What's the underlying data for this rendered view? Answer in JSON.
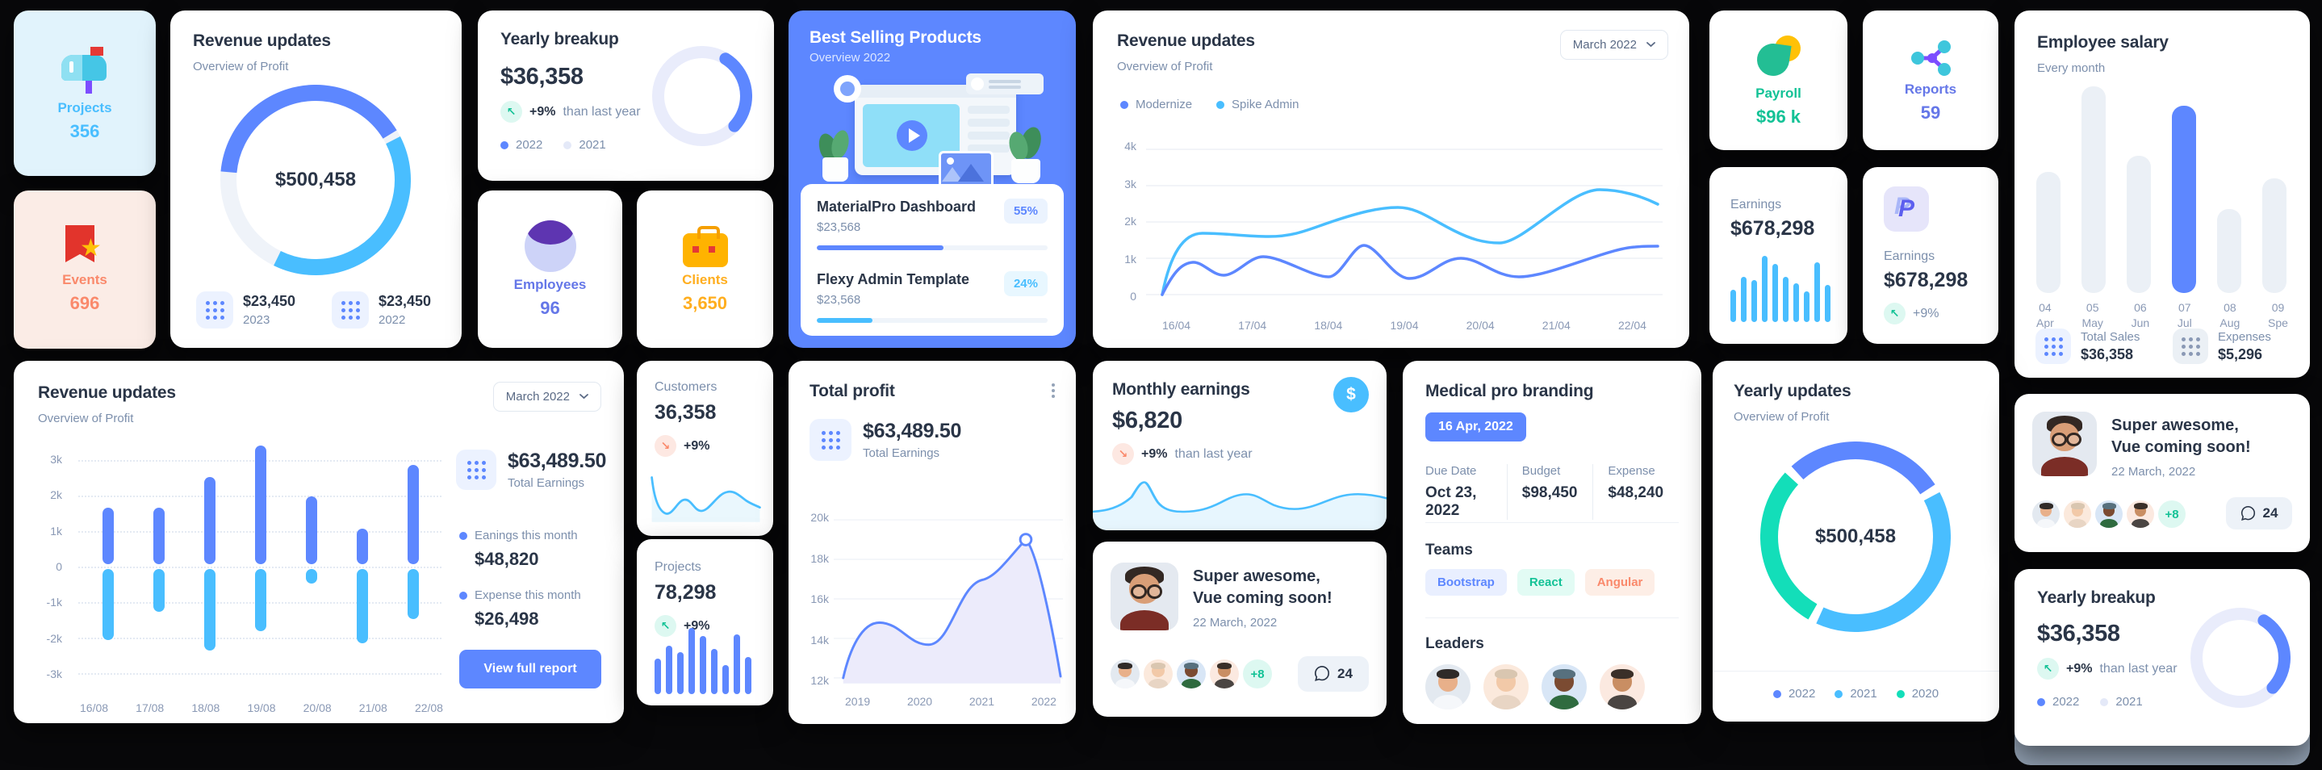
{
  "page": {
    "bg": "#08080A"
  },
  "colors": {
    "primary": "#5D87FF",
    "secondary": "#49BEFF",
    "success": "#13DEB9",
    "danger": "#FA896B",
    "warning": "#FFAE1F",
    "text_dark": "#2A3547",
    "text_gray": "#7C8FAC"
  },
  "cards": {
    "projects": {
      "label": "Projects",
      "value": "356"
    },
    "events": {
      "label": "Events",
      "value": "696"
    },
    "revenue_donut": {
      "title": "Revenue updates",
      "subtitle": "Overview of Profit",
      "center": "$500,458",
      "stats": [
        {
          "value": "$23,450",
          "year": "2023"
        },
        {
          "value": "$23,450",
          "year": "2022"
        }
      ]
    },
    "yearly_breakup_top": {
      "title": "Yearly breakup",
      "value": "$36,358",
      "delta": "+9%",
      "delta_note": "than last year",
      "legend": [
        "2022",
        "2021"
      ]
    },
    "employees": {
      "label": "Employees",
      "value": "96"
    },
    "clients": {
      "label": "Clients",
      "value": "3,650"
    },
    "best_selling": {
      "title": "Best Selling Products",
      "subtitle": "Overview 2022",
      "products": [
        {
          "name": "MaterialPro Dashboard",
          "price": "$23,568",
          "badge": "55%",
          "progress": 55,
          "bar_color": "#5D87FF"
        },
        {
          "name": "Flexy Admin Template",
          "price": "$23,568",
          "badge": "24%",
          "progress": 24,
          "bar_color": "#49BEFF"
        }
      ]
    },
    "revenue_line": {
      "title": "Revenue updates",
      "subtitle": "Overview of Profit",
      "select": "March 2022",
      "legend": [
        "Modernize",
        "Spike Admin"
      ]
    },
    "payroll": {
      "label": "Payroll",
      "value": "$96 k"
    },
    "reports": {
      "label": "Reports",
      "value": "59"
    },
    "earnings_bar": {
      "label": "Earnings",
      "value": "$678,298"
    },
    "earnings_paypal": {
      "label": "Earnings",
      "value": "$678,298",
      "delta": "+9%"
    },
    "employee_salary": {
      "title": "Employee salary",
      "subtitle": "Every month",
      "stats": [
        {
          "label": "Total Sales",
          "value": "$36,358"
        },
        {
          "label": "Expenses",
          "value": "$5,296"
        }
      ]
    },
    "revenue_bar": {
      "title": "Revenue updates",
      "subtitle": "Overview of Profit",
      "select": "March 2022",
      "total": "$63,489.50",
      "total_label": "Total Earnings",
      "items": [
        {
          "label": "Eanings this month",
          "value": "$48,820"
        },
        {
          "label": "Expense this month",
          "value": "$26,498"
        }
      ],
      "button": "View full report"
    },
    "customers": {
      "label": "Customers",
      "value": "36,358",
      "delta": "+9%"
    },
    "projects_mini": {
      "label": "Projects",
      "value": "78,298",
      "delta": "+9%"
    },
    "total_profit": {
      "title": "Total profit",
      "total": "$63,489.50",
      "total_label": "Total Earnings"
    },
    "monthly_earnings": {
      "title": "Monthly earnings",
      "value": "$6,820",
      "delta": "+9%",
      "delta_note": "than last year"
    },
    "vue_mid": {
      "title1": "Super awesome,",
      "title2": "Vue coming soon!",
      "date": "22 March, 2022",
      "extra": "+8",
      "comments": "24"
    },
    "medical": {
      "title": "Medical pro branding",
      "badge": "16 Apr, 2022",
      "fields": [
        {
          "label": "Due Date",
          "value": "Oct 23, 2022"
        },
        {
          "label": "Budget",
          "value": "$98,450"
        },
        {
          "label": "Expense",
          "value": "$48,240"
        }
      ],
      "teams_label": "Teams",
      "teams": [
        {
          "name": "Bootstrap"
        },
        {
          "name": "React"
        },
        {
          "name": "Angular"
        }
      ],
      "leaders_label": "Leaders"
    },
    "yearly_updates": {
      "title": "Yearly updates",
      "subtitle": "Overview of Profit",
      "center": "$500,458",
      "legend": [
        "2022",
        "2021",
        "2020"
      ]
    },
    "vue_right": {
      "title1": "Super awesome,",
      "title2": "Vue coming soon!",
      "date": "22 March, 2022",
      "extra": "+8",
      "comments": "24"
    },
    "yearly_breakup_bottom": {
      "title": "Yearly breakup",
      "value": "$36,358",
      "delta": "+9%",
      "delta_note": "than last year",
      "legend": [
        "2022",
        "2021"
      ]
    }
  },
  "chart_data": {
    "revenue_donut": {
      "type": "donut",
      "title": "Revenue updates",
      "center_label": "$500,458",
      "size": 236,
      "stroke": 20,
      "start": 183,
      "gap": 1.2,
      "cap": "butt",
      "track": "#EFF3F9",
      "segments": [
        {
          "label": "2023",
          "color": "#5D87FF",
          "pct": 41
        },
        {
          "label": "2022",
          "color": "#49BEFF",
          "pct": 41
        }
      ]
    },
    "yearly_breakup": {
      "type": "donut",
      "title": "Yearly breakup",
      "size": 124,
      "stroke": 15,
      "start": -58,
      "gap": 0,
      "cap": "round",
      "track": "#E9ECFB",
      "segments": [
        {
          "label": "2022",
          "color": "#5D87FF",
          "pct": 28
        }
      ]
    },
    "yearly_updates": {
      "type": "donut",
      "title": "Yearly updates",
      "center_label": "$500,458",
      "size": 236,
      "stroke": 22,
      "start": -135,
      "gap": 1.5,
      "cap": "butt",
      "segments": [
        {
          "label": "2022",
          "color": "#5D87FF",
          "pct": 29
        },
        {
          "label": "2021",
          "color": "#49BEFF",
          "pct": 41
        },
        {
          "label": "2020",
          "color": "#13DEB9",
          "pct": 30
        }
      ]
    },
    "revenue_line": {
      "type": "line",
      "x": [
        "16/04",
        "17/04",
        "18/04",
        "19/04",
        "20/04",
        "21/04",
        "22/04"
      ],
      "y_ticks": [
        "4k",
        "3k",
        "2k",
        "1k",
        "0"
      ],
      "ylim": [
        0,
        4000
      ],
      "grid": true,
      "legend_position": "top",
      "series": [
        {
          "name": "Modernize",
          "color": "#5D87FF",
          "values": [
            900,
            1050,
            500,
            1350,
            1000,
            500,
            1300
          ]
        },
        {
          "name": "Spike Admin",
          "color": "#49BEFF",
          "values": [
            1700,
            1600,
            1800,
            2400,
            1450,
            2200,
            2900
          ]
        }
      ]
    },
    "revenue_bar": {
      "type": "bar",
      "x": [
        "16/08",
        "17/08",
        "18/08",
        "19/08",
        "20/08",
        "21/08",
        "22/08"
      ],
      "y_ticks": [
        "3k",
        "2k",
        "1k",
        "0",
        "-1k",
        "-2k",
        "-3k"
      ],
      "ylim": [
        -3000,
        3000
      ],
      "earnings": [
        1.6,
        1.6,
        2.45,
        3.35,
        1.9,
        1.0,
        2.8
      ],
      "expense": [
        -2.0,
        -1.2,
        -2.3,
        -1.75,
        -0.4,
        -2.1,
        -1.4
      ],
      "unit": 44,
      "zero": 155,
      "width": 14,
      "x0": 30,
      "step": 63,
      "color_pos": "#5D87FF",
      "color_neg": "#49BEFF",
      "grid": [
        3,
        2,
        1,
        0,
        -1,
        -2,
        -3
      ]
    },
    "total_profit": {
      "type": "area",
      "x": [
        "2019",
        "2020",
        "2021",
        "2022"
      ],
      "y_ticks": [
        "20k",
        "18k",
        "16k",
        "14k",
        "12k"
      ],
      "ylim": [
        12000,
        20000
      ],
      "values_k": [
        12,
        14.8,
        13.7,
        17,
        19,
        12
      ],
      "line_color": "#5D87FF",
      "fill_color": "#ECEBFB"
    },
    "employee_salary": {
      "type": "bar",
      "ylabel": "salary",
      "months": [
        {
          "num": "04",
          "name": "Apr"
        },
        {
          "num": "05",
          "name": "May"
        },
        {
          "num": "06",
          "name": "Jun"
        },
        {
          "num": "07",
          "name": "Jul"
        },
        {
          "num": "08",
          "name": "Aug"
        },
        {
          "num": "09",
          "name": "Spe"
        }
      ],
      "values": [
        150,
        256,
        170,
        232,
        104,
        142
      ],
      "width": 30,
      "radius": 14,
      "color": "#EBF0F6",
      "highlight": 3,
      "highlight_color": "#5D87FF"
    },
    "earnings_spark": {
      "type": "bar",
      "values": [
        40,
        56,
        52,
        82,
        72,
        56,
        48,
        38,
        74,
        46
      ],
      "width": 7,
      "radius": 4,
      "color": "#49BEFF"
    },
    "projects_spark": {
      "type": "bar",
      "values": [
        44,
        60,
        52,
        82,
        72,
        56,
        36,
        74,
        46
      ],
      "width": 8,
      "radius": 4,
      "color": "#5D87FF"
    },
    "customers_spark": {
      "type": "line",
      "color": "#49BEFF",
      "values_rel": [
        0.9,
        0.2,
        0.45,
        0.3,
        0.62,
        0.55,
        0.4
      ]
    },
    "monthly_spark": {
      "type": "area",
      "color": "#49BEFF",
      "values_rel": [
        0.3,
        0.85,
        0.3,
        0.35,
        0.6,
        0.4,
        0.55,
        0.5
      ]
    }
  }
}
